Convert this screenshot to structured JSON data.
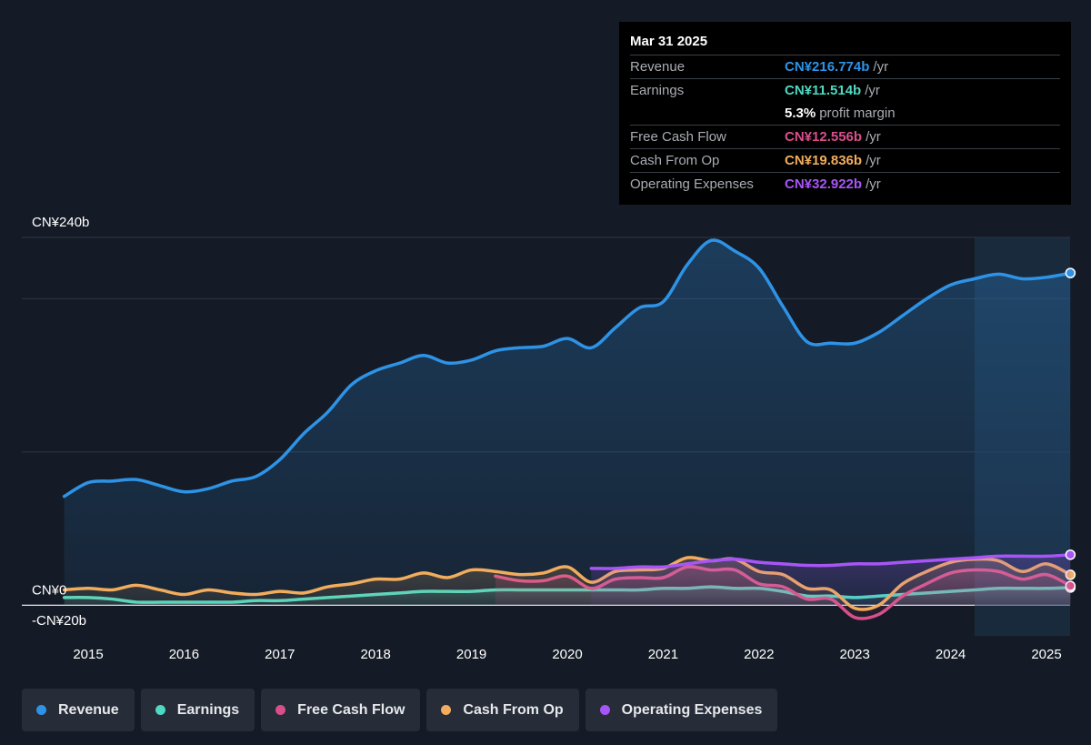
{
  "chart_data": {
    "type": "area",
    "currency": "CN¥",
    "y_axis": {
      "ylim": [
        -20,
        240
      ],
      "labels": [
        {
          "value": 240,
          "text": "CN¥240b"
        },
        {
          "value": 0,
          "text": "CN¥0"
        },
        {
          "value": -20,
          "text": "-CN¥20b"
        }
      ],
      "gridlines": [
        240,
        200,
        100,
        0
      ]
    },
    "x_axis": {
      "xlim": [
        2014.4,
        2025.25
      ],
      "ticks": [
        "2015",
        "2016",
        "2017",
        "2018",
        "2019",
        "2020",
        "2021",
        "2022",
        "2023",
        "2024",
        "2025"
      ]
    },
    "forecast_shade_start": 2024.25,
    "series": [
      {
        "name": "Revenue",
        "color": "#2e93e6",
        "fill": true,
        "points": [
          [
            2014.75,
            71
          ],
          [
            2015.0,
            80
          ],
          [
            2015.25,
            81
          ],
          [
            2015.5,
            82
          ],
          [
            2015.75,
            78
          ],
          [
            2016.0,
            74
          ],
          [
            2016.25,
            76
          ],
          [
            2016.5,
            81
          ],
          [
            2016.75,
            84
          ],
          [
            2017.0,
            95
          ],
          [
            2017.25,
            112
          ],
          [
            2017.5,
            126
          ],
          [
            2017.75,
            144
          ],
          [
            2018.0,
            153
          ],
          [
            2018.25,
            158
          ],
          [
            2018.5,
            163
          ],
          [
            2018.75,
            158
          ],
          [
            2019.0,
            160
          ],
          [
            2019.25,
            166
          ],
          [
            2019.5,
            168
          ],
          [
            2019.75,
            169
          ],
          [
            2020.0,
            174
          ],
          [
            2020.25,
            168
          ],
          [
            2020.5,
            181
          ],
          [
            2020.75,
            194
          ],
          [
            2021.0,
            198
          ],
          [
            2021.25,
            222
          ],
          [
            2021.5,
            238
          ],
          [
            2021.75,
            231
          ],
          [
            2022.0,
            220
          ],
          [
            2022.25,
            195
          ],
          [
            2022.5,
            172
          ],
          [
            2022.75,
            171
          ],
          [
            2023.0,
            171
          ],
          [
            2023.25,
            178
          ],
          [
            2023.5,
            189
          ],
          [
            2023.75,
            200
          ],
          [
            2024.0,
            209
          ],
          [
            2024.25,
            213
          ],
          [
            2024.5,
            216
          ],
          [
            2024.75,
            213
          ],
          [
            2025.0,
            214
          ],
          [
            2025.25,
            216.774
          ]
        ]
      },
      {
        "name": "Earnings",
        "color": "#4fd8c2",
        "fill": true,
        "points": [
          [
            2014.75,
            5
          ],
          [
            2015.0,
            5
          ],
          [
            2015.25,
            4
          ],
          [
            2015.5,
            2
          ],
          [
            2015.75,
            2
          ],
          [
            2016.0,
            2
          ],
          [
            2016.25,
            2
          ],
          [
            2016.5,
            2
          ],
          [
            2016.75,
            3
          ],
          [
            2017.0,
            3
          ],
          [
            2017.25,
            4
          ],
          [
            2017.5,
            5
          ],
          [
            2017.75,
            6
          ],
          [
            2018.0,
            7
          ],
          [
            2018.25,
            8
          ],
          [
            2018.5,
            9
          ],
          [
            2018.75,
            9
          ],
          [
            2019.0,
            9
          ],
          [
            2019.25,
            10
          ],
          [
            2019.5,
            10
          ],
          [
            2019.75,
            10
          ],
          [
            2020.0,
            10
          ],
          [
            2020.25,
            10
          ],
          [
            2020.5,
            10
          ],
          [
            2020.75,
            10
          ],
          [
            2021.0,
            11
          ],
          [
            2021.25,
            11
          ],
          [
            2021.5,
            12
          ],
          [
            2021.75,
            11
          ],
          [
            2022.0,
            11
          ],
          [
            2022.25,
            9
          ],
          [
            2022.5,
            6
          ],
          [
            2022.75,
            6
          ],
          [
            2023.0,
            5
          ],
          [
            2023.25,
            6
          ],
          [
            2023.5,
            7
          ],
          [
            2023.75,
            8
          ],
          [
            2024.0,
            9
          ],
          [
            2024.25,
            10
          ],
          [
            2024.5,
            11
          ],
          [
            2024.75,
            11
          ],
          [
            2025.0,
            11
          ],
          [
            2025.25,
            11.514
          ]
        ]
      },
      {
        "name": "Free Cash Flow",
        "color": "#d94f8c",
        "fill": true,
        "points": [
          [
            2019.25,
            19
          ],
          [
            2019.5,
            16
          ],
          [
            2019.75,
            16
          ],
          [
            2020.0,
            19
          ],
          [
            2020.25,
            11
          ],
          [
            2020.5,
            17
          ],
          [
            2020.75,
            18
          ],
          [
            2021.0,
            18
          ],
          [
            2021.25,
            25
          ],
          [
            2021.5,
            23
          ],
          [
            2021.75,
            23
          ],
          [
            2022.0,
            14
          ],
          [
            2022.25,
            12
          ],
          [
            2022.5,
            4
          ],
          [
            2022.75,
            4
          ],
          [
            2023.0,
            -8
          ],
          [
            2023.25,
            -6
          ],
          [
            2023.5,
            6
          ],
          [
            2023.75,
            14
          ],
          [
            2024.0,
            21
          ],
          [
            2024.25,
            23
          ],
          [
            2024.5,
            22
          ],
          [
            2024.75,
            17
          ],
          [
            2025.0,
            20
          ],
          [
            2025.25,
            12.556
          ]
        ]
      },
      {
        "name": "Cash From Op",
        "color": "#f2ac5d",
        "fill": true,
        "points": [
          [
            2014.75,
            10
          ],
          [
            2015.0,
            11
          ],
          [
            2015.25,
            10
          ],
          [
            2015.5,
            13
          ],
          [
            2015.75,
            10
          ],
          [
            2016.0,
            7
          ],
          [
            2016.25,
            10
          ],
          [
            2016.5,
            8
          ],
          [
            2016.75,
            7
          ],
          [
            2017.0,
            9
          ],
          [
            2017.25,
            8
          ],
          [
            2017.5,
            12
          ],
          [
            2017.75,
            14
          ],
          [
            2018.0,
            17
          ],
          [
            2018.25,
            17
          ],
          [
            2018.5,
            21
          ],
          [
            2018.75,
            18
          ],
          [
            2019.0,
            23
          ],
          [
            2019.25,
            22
          ],
          [
            2019.5,
            20
          ],
          [
            2019.75,
            21
          ],
          [
            2020.0,
            25
          ],
          [
            2020.25,
            15
          ],
          [
            2020.5,
            22
          ],
          [
            2020.75,
            23
          ],
          [
            2021.0,
            24
          ],
          [
            2021.25,
            31
          ],
          [
            2021.5,
            29
          ],
          [
            2021.75,
            30
          ],
          [
            2022.0,
            22
          ],
          [
            2022.25,
            20
          ],
          [
            2022.5,
            11
          ],
          [
            2022.75,
            10
          ],
          [
            2023.0,
            -2
          ],
          [
            2023.25,
            0
          ],
          [
            2023.5,
            14
          ],
          [
            2023.75,
            22
          ],
          [
            2024.0,
            28
          ],
          [
            2024.25,
            30
          ],
          [
            2024.5,
            29
          ],
          [
            2024.75,
            22
          ],
          [
            2025.0,
            27
          ],
          [
            2025.25,
            19.836
          ]
        ]
      },
      {
        "name": "Operating Expenses",
        "color": "#a855f7",
        "fill": true,
        "points": [
          [
            2020.25,
            24
          ],
          [
            2020.5,
            24
          ],
          [
            2020.75,
            25
          ],
          [
            2021.0,
            25
          ],
          [
            2021.25,
            27
          ],
          [
            2021.5,
            29
          ],
          [
            2021.75,
            30
          ],
          [
            2022.0,
            28
          ],
          [
            2022.25,
            27
          ],
          [
            2022.5,
            26
          ],
          [
            2022.75,
            26
          ],
          [
            2023.0,
            27
          ],
          [
            2023.25,
            27
          ],
          [
            2023.5,
            28
          ],
          [
            2023.75,
            29
          ],
          [
            2024.0,
            30
          ],
          [
            2024.25,
            31
          ],
          [
            2024.5,
            32
          ],
          [
            2024.75,
            32
          ],
          [
            2025.0,
            32
          ],
          [
            2025.25,
            32.922
          ]
        ]
      }
    ]
  },
  "tooltip": {
    "date": "Mar 31 2025",
    "rows": [
      {
        "label": "Revenue",
        "value": "CN¥216.774b",
        "unit": "/yr",
        "color": "#2e93e6"
      },
      {
        "label": "Earnings",
        "value": "CN¥11.514b",
        "unit": "/yr",
        "color": "#4fd8c2"
      },
      {
        "label": "",
        "value": "5.3%",
        "unit": "profit margin",
        "color": "#ffffff"
      },
      {
        "label": "Free Cash Flow",
        "value": "CN¥12.556b",
        "unit": "/yr",
        "color": "#d94f8c"
      },
      {
        "label": "Cash From Op",
        "value": "CN¥19.836b",
        "unit": "/yr",
        "color": "#f2ac5d"
      },
      {
        "label": "Operating Expenses",
        "value": "CN¥32.922b",
        "unit": "/yr",
        "color": "#a855f7"
      }
    ]
  },
  "legend": [
    {
      "label": "Revenue",
      "color": "#2e93e6"
    },
    {
      "label": "Earnings",
      "color": "#4fd8c2"
    },
    {
      "label": "Free Cash Flow",
      "color": "#d94f8c"
    },
    {
      "label": "Cash From Op",
      "color": "#f2ac5d"
    },
    {
      "label": "Operating Expenses",
      "color": "#a855f7"
    }
  ]
}
